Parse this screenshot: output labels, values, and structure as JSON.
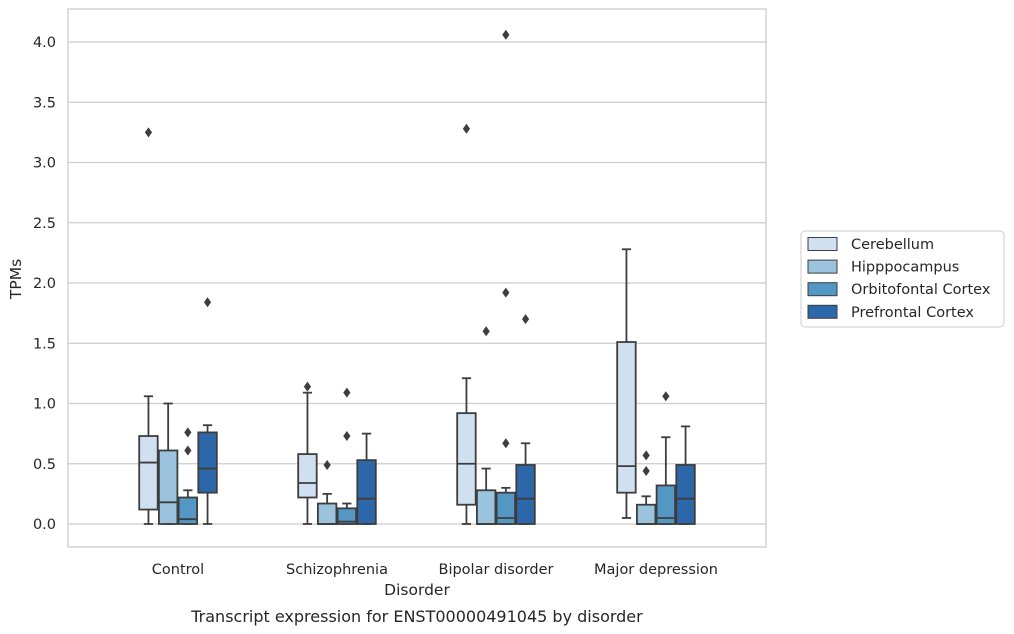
{
  "chart_data": {
    "type": "box",
    "caption": "Transcript expression for ENST00000491045 by disorder",
    "xlabel": "Disorder",
    "ylabel": "TPMs",
    "ylim": [
      -0.2,
      4.27
    ],
    "yticks": [
      "0.0",
      "0.5",
      "1.0",
      "1.5",
      "2.0",
      "2.5",
      "3.0",
      "3.5",
      "4.0"
    ],
    "grid": "horizontal",
    "legend_position": "right",
    "categories": [
      "Control",
      "Schizophrenia",
      "Bipolar disorder",
      "Major depression"
    ],
    "series": [
      {
        "name": "Cerebellum",
        "color": "#d0e0f0",
        "boxes": [
          {
            "whisker_low": 0.0,
            "q1": 0.12,
            "median": 0.51,
            "q3": 0.73,
            "whisker_high": 1.06,
            "outliers": [
              3.25
            ]
          },
          {
            "whisker_low": 0.0,
            "q1": 0.22,
            "median": 0.34,
            "q3": 0.58,
            "whisker_high": 1.09,
            "outliers": [
              1.14
            ]
          },
          {
            "whisker_low": 0.0,
            "q1": 0.16,
            "median": 0.5,
            "q3": 0.92,
            "whisker_high": 1.21,
            "outliers": [
              3.28
            ]
          },
          {
            "whisker_low": 0.05,
            "q1": 0.26,
            "median": 0.48,
            "q3": 1.51,
            "whisker_high": 2.28,
            "outliers": []
          }
        ]
      },
      {
        "name": "Hipppocampus",
        "color": "#9cc3dd",
        "boxes": [
          {
            "whisker_low": 0.0,
            "q1": 0.0,
            "median": 0.18,
            "q3": 0.61,
            "whisker_high": 1.0,
            "outliers": []
          },
          {
            "whisker_low": 0.0,
            "q1": 0.0,
            "median": 0.0,
            "q3": 0.17,
            "whisker_high": 0.25,
            "outliers": [
              0.49
            ]
          },
          {
            "whisker_low": 0.0,
            "q1": 0.0,
            "median": 0.0,
            "q3": 0.28,
            "whisker_high": 0.46,
            "outliers": [
              1.6
            ]
          },
          {
            "whisker_low": 0.0,
            "q1": 0.0,
            "median": 0.0,
            "q3": 0.16,
            "whisker_high": 0.23,
            "outliers": [
              0.44,
              0.57
            ]
          }
        ]
      },
      {
        "name": "Orbitofontal Cortex",
        "color": "#5497c5",
        "boxes": [
          {
            "whisker_low": 0.0,
            "q1": 0.0,
            "median": 0.04,
            "q3": 0.22,
            "whisker_high": 0.28,
            "outliers": [
              0.61,
              0.76
            ]
          },
          {
            "whisker_low": 0.0,
            "q1": 0.0,
            "median": 0.02,
            "q3": 0.13,
            "whisker_high": 0.17,
            "outliers": [
              0.73,
              1.09
            ]
          },
          {
            "whisker_low": 0.0,
            "q1": 0.0,
            "median": 0.05,
            "q3": 0.26,
            "whisker_high": 0.3,
            "outliers": [
              0.67,
              1.92,
              4.06
            ]
          },
          {
            "whisker_low": 0.0,
            "q1": 0.0,
            "median": 0.05,
            "q3": 0.32,
            "whisker_high": 0.72,
            "outliers": [
              1.06
            ]
          }
        ]
      },
      {
        "name": "Prefrontal Cortex",
        "color": "#2c68a9",
        "boxes": [
          {
            "whisker_low": 0.0,
            "q1": 0.26,
            "median": 0.46,
            "q3": 0.76,
            "whisker_high": 0.82,
            "outliers": [
              1.84
            ]
          },
          {
            "whisker_low": 0.0,
            "q1": 0.0,
            "median": 0.21,
            "q3": 0.53,
            "whisker_high": 0.75,
            "outliers": []
          },
          {
            "whisker_low": 0.0,
            "q1": 0.0,
            "median": 0.21,
            "q3": 0.49,
            "whisker_high": 0.67,
            "outliers": [
              1.7
            ]
          },
          {
            "whisker_low": 0.0,
            "q1": 0.0,
            "median": 0.21,
            "q3": 0.49,
            "whisker_high": 0.81,
            "outliers": []
          }
        ]
      }
    ]
  },
  "colors": {
    "box_edge": "#3d3d3d",
    "grid": "#cccccc",
    "frame": "#cccccc",
    "text": "#262626"
  }
}
